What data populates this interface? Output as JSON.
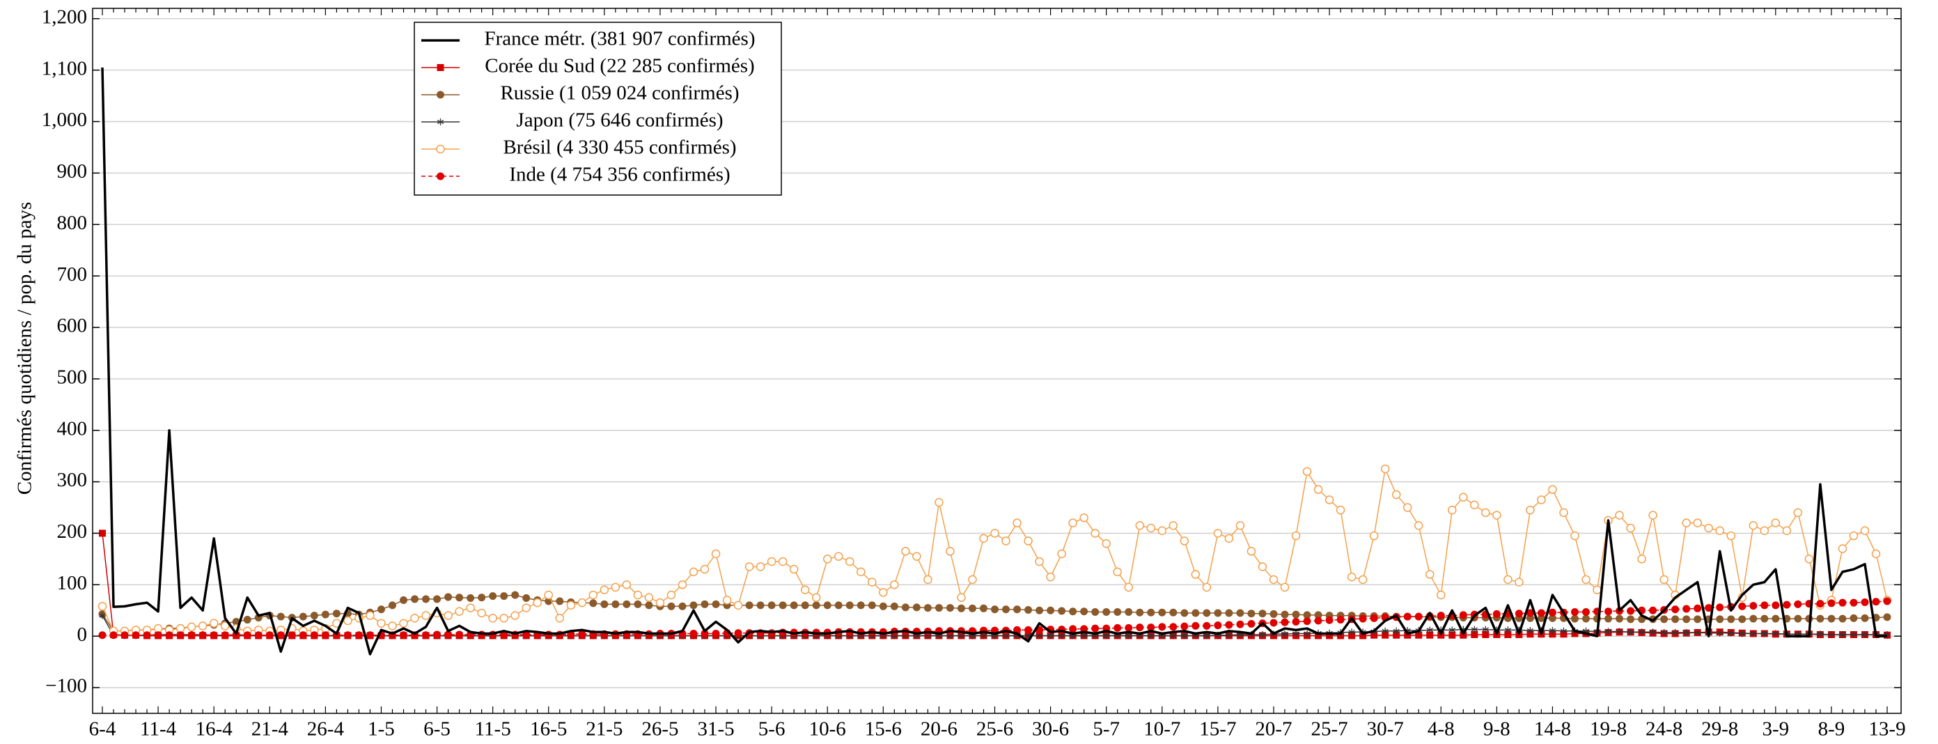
{
  "chart_data": {
    "type": "line",
    "ylabel": "Confirmés quotidiens / pop. du pays",
    "categories": [
      "6-4",
      null,
      null,
      null,
      null,
      "11-4",
      null,
      null,
      null,
      null,
      "16-4",
      null,
      null,
      null,
      null,
      "21-4",
      null,
      null,
      null,
      null,
      "26-4",
      null,
      null,
      null,
      null,
      "1-5",
      null,
      null,
      null,
      null,
      "6-5",
      null,
      null,
      null,
      null,
      "11-5",
      null,
      null,
      null,
      null,
      "16-5",
      null,
      null,
      null,
      null,
      "21-5",
      null,
      null,
      null,
      null,
      "26-5",
      null,
      null,
      null,
      null,
      "31-5",
      null,
      null,
      null,
      null,
      "5-6",
      null,
      null,
      null,
      null,
      "10-6",
      null,
      null,
      null,
      null,
      "15-6",
      null,
      null,
      null,
      null,
      "20-6",
      null,
      null,
      null,
      null,
      "25-6",
      null,
      null,
      null,
      null,
      "30-6",
      null,
      null,
      null,
      null,
      "5-7",
      null,
      null,
      null,
      null,
      "10-7",
      null,
      null,
      null,
      null,
      "15-7",
      null,
      null,
      null,
      null,
      "20-7",
      null,
      null,
      null,
      null,
      "25-7",
      null,
      null,
      null,
      null,
      "30-7",
      null,
      null,
      null,
      null,
      "4-8",
      null,
      null,
      null,
      null,
      "9-8",
      null,
      null,
      null,
      null,
      "14-8",
      null,
      null,
      null,
      null,
      "19-8",
      null,
      null,
      null,
      null,
      "24-8",
      null,
      null,
      null,
      null,
      "29-8",
      null,
      null,
      null,
      null,
      "3-9",
      null,
      null,
      null,
      null,
      "8-9",
      null,
      null,
      null,
      null,
      "13-9"
    ],
    "ylim": [
      -150,
      1220
    ],
    "yticks": [
      {
        "value": -100,
        "label": "−100"
      },
      0,
      100,
      200,
      300,
      400,
      500,
      600,
      700,
      800,
      900,
      {
        "value": 1000,
        "label": "1,000"
      },
      {
        "value": 1100,
        "label": "1,100"
      },
      {
        "value": 1200,
        "label": "1,200"
      }
    ],
    "grid": true,
    "legend": "upper left",
    "series": [
      {
        "name": "France métr. (381 907 confirmés)",
        "color": "#000000",
        "marker": "none",
        "width": 3.5,
        "values": [
          1105,
          57,
          58,
          62,
          65,
          48,
          400,
          55,
          75,
          50,
          190,
          35,
          5,
          75,
          40,
          45,
          -30,
          35,
          20,
          30,
          20,
          5,
          55,
          45,
          -35,
          12,
          5,
          15,
          5,
          18,
          55,
          10,
          20,
          8,
          5,
          5,
          10,
          5,
          10,
          8,
          5,
          5,
          10,
          12,
          8,
          8,
          5,
          8,
          8,
          5,
          5,
          5,
          10,
          50,
          10,
          28,
          12,
          -12,
          8,
          10,
          8,
          10,
          5,
          8,
          5,
          5,
          8,
          10,
          5,
          8,
          5,
          8,
          10,
          5,
          8,
          5,
          10,
          8,
          5,
          8,
          5,
          10,
          5,
          -10,
          25,
          8,
          10,
          5,
          8,
          5,
          10,
          5,
          8,
          5,
          10,
          5,
          8,
          10,
          5,
          8,
          5,
          10,
          8,
          5,
          25,
          5,
          15,
          12,
          15,
          5,
          5,
          5,
          35,
          5,
          10,
          30,
          40,
          5,
          10,
          45,
          5,
          50,
          5,
          40,
          55,
          5,
          60,
          5,
          70,
          5,
          80,
          45,
          10,
          5,
          0,
          225,
          50,
          70,
          40,
          30,
          50,
          75,
          90,
          105,
          0,
          165,
          50,
          80,
          100,
          105,
          130,
          0,
          0,
          0,
          295,
          90,
          125,
          130,
          140,
          0,
          0
        ]
      },
      {
        "name": "Corée du Sud (22 285 confirmés)",
        "color": "#d40000",
        "marker": "square",
        "width": 1.5,
        "values": [
          200,
          3,
          2,
          2,
          1,
          1,
          1,
          1,
          1,
          1,
          1,
          1,
          1,
          1,
          1,
          1,
          1,
          1,
          1,
          1,
          1,
          1,
          1,
          1,
          1,
          1,
          1,
          1,
          1,
          1,
          1,
          1,
          1,
          1,
          1,
          1,
          1,
          1,
          1,
          1,
          1,
          1,
          1,
          1,
          1,
          1,
          1,
          1,
          1,
          1,
          1,
          1,
          1,
          1,
          1,
          1,
          1,
          1,
          1,
          1,
          1,
          1,
          1,
          1,
          1,
          1,
          1,
          1,
          1,
          1,
          1,
          1,
          1,
          1,
          1,
          1,
          1,
          1,
          1,
          1,
          1,
          1,
          1,
          1,
          1,
          1,
          1,
          1,
          1,
          1,
          1,
          1,
          1,
          1,
          1,
          1,
          1,
          1,
          1,
          1,
          1,
          1,
          1,
          1,
          1,
          1,
          1,
          1,
          1,
          1,
          1,
          1,
          1,
          1,
          2,
          2,
          2,
          2,
          2,
          2,
          2,
          2,
          2,
          3,
          3,
          3,
          3,
          3,
          4,
          4,
          4,
          4,
          5,
          5,
          6,
          7,
          8,
          8,
          7,
          6,
          5,
          5,
          6,
          7,
          8,
          8,
          7,
          6,
          5,
          5,
          4,
          4,
          4,
          4,
          3,
          3,
          3,
          3,
          3,
          3,
          2
        ]
      },
      {
        "name": "Russie (1 059 024 confirmés)",
        "color": "#8b5a2b",
        "marker": "circle",
        "width": 1.5,
        "values": [
          43,
          10,
          10,
          12,
          12,
          14,
          15,
          16,
          18,
          20,
          22,
          25,
          28,
          32,
          36,
          40,
          38,
          36,
          38,
          40,
          42,
          44,
          44,
          42,
          46,
          52,
          60,
          70,
          72,
          72,
          72,
          76,
          75,
          74,
          75,
          78,
          78,
          80,
          74,
          70,
          68,
          68,
          66,
          65,
          64,
          62,
          62,
          62,
          62,
          60,
          58,
          58,
          58,
          60,
          62,
          62,
          60,
          60,
          60,
          60,
          60,
          60,
          60,
          60,
          60,
          60,
          60,
          60,
          60,
          60,
          58,
          58,
          56,
          56,
          55,
          55,
          55,
          54,
          54,
          54,
          52,
          52,
          52,
          51,
          50,
          50,
          49,
          48,
          48,
          47,
          47,
          47,
          47,
          46,
          46,
          46,
          46,
          45,
          45,
          45,
          45,
          45,
          45,
          44,
          44,
          43,
          42,
          42,
          41,
          41,
          40,
          40,
          40,
          39,
          39,
          39,
          38,
          38,
          38,
          37,
          37,
          37,
          36,
          36,
          36,
          36,
          35,
          35,
          35,
          35,
          35,
          35,
          34,
          34,
          34,
          34,
          34,
          33,
          33,
          33,
          33,
          33,
          33,
          33,
          33,
          33,
          33,
          33,
          34,
          34,
          34,
          34,
          34,
          34,
          34,
          34,
          34,
          35,
          35,
          36,
          37
        ]
      },
      {
        "name": "Japon (75 646 confirmés)",
        "color": "#333333",
        "marker": "star",
        "width": 1.5,
        "values": [
          40,
          2,
          2,
          2,
          2,
          3,
          3,
          3,
          3,
          3,
          2,
          2,
          3,
          2,
          2,
          2,
          1,
          1,
          1,
          1,
          1,
          1,
          1,
          1,
          1,
          1,
          1,
          1,
          1,
          1,
          1,
          1,
          1,
          1,
          1,
          1,
          1,
          1,
          1,
          1,
          1,
          1,
          1,
          1,
          1,
          1,
          1,
          1,
          1,
          1,
          1,
          1,
          1,
          1,
          1,
          1,
          1,
          1,
          1,
          1,
          1,
          1,
          1,
          1,
          1,
          1,
          1,
          1,
          1,
          1,
          1,
          1,
          1,
          1,
          1,
          1,
          1,
          1,
          1,
          1,
          1,
          1,
          1,
          1,
          1,
          1,
          1,
          1,
          1,
          1,
          1,
          1,
          1,
          1,
          1,
          1,
          1,
          1,
          1,
          1,
          2,
          2,
          3,
          3,
          3,
          4,
          4,
          5,
          5,
          6,
          6,
          7,
          8,
          8,
          9,
          10,
          10,
          11,
          11,
          12,
          12,
          12,
          13,
          13,
          13,
          12,
          12,
          12,
          11,
          11,
          11,
          10,
          10,
          10,
          9,
          9,
          9,
          8,
          8,
          8,
          7,
          7,
          7,
          7,
          6,
          6,
          6,
          5,
          5,
          5,
          5,
          4,
          4,
          4,
          4,
          3,
          3,
          3,
          3,
          3,
          3
        ]
      },
      {
        "name": "Brésil (4 330 455 confirmés)",
        "color": "#f5a04a",
        "marker": "open-circle",
        "width": 1.5,
        "values": [
          58,
          10,
          10,
          12,
          12,
          15,
          12,
          15,
          18,
          20,
          25,
          20,
          15,
          10,
          12,
          10,
          12,
          15,
          10,
          12,
          15,
          25,
          30,
          35,
          40,
          25,
          20,
          25,
          35,
          40,
          45,
          40,
          48,
          55,
          45,
          35,
          35,
          40,
          55,
          65,
          80,
          35,
          60,
          65,
          80,
          90,
          95,
          100,
          80,
          75,
          65,
          80,
          100,
          125,
          130,
          160,
          70,
          60,
          135,
          135,
          145,
          145,
          130,
          90,
          75,
          150,
          155,
          145,
          125,
          105,
          85,
          100,
          165,
          155,
          110,
          260,
          165,
          75,
          110,
          190,
          200,
          185,
          220,
          185,
          145,
          115,
          160,
          220,
          230,
          200,
          180,
          125,
          95,
          215,
          210,
          205,
          215,
          185,
          120,
          95,
          200,
          190,
          215,
          165,
          135,
          110,
          95,
          195,
          320,
          285,
          265,
          245,
          115,
          110,
          195,
          325,
          275,
          250,
          215,
          120,
          80,
          245,
          270,
          255,
          240,
          235,
          110,
          105,
          245,
          265,
          285,
          240,
          195,
          110,
          90,
          225,
          235,
          210,
          150,
          235,
          110,
          80,
          220,
          220,
          210,
          205,
          195,
          75,
          215,
          205,
          220,
          205,
          240,
          150,
          60,
          70,
          170,
          195,
          205,
          160,
          70
        ]
      },
      {
        "name": "Inde (4 754 356 confirmés)",
        "color": "#e00000",
        "marker": "circle",
        "dash": true,
        "width": 1.5,
        "values": [
          2,
          2,
          2,
          2,
          2,
          2,
          2,
          2,
          2,
          2,
          2,
          2,
          2,
          2,
          2,
          2,
          2,
          2,
          2,
          2,
          2,
          2,
          2,
          2,
          2,
          2,
          2,
          2,
          2,
          2,
          3,
          3,
          3,
          3,
          3,
          3,
          3,
          3,
          3,
          3,
          3,
          3,
          4,
          4,
          4,
          4,
          4,
          4,
          4,
          4,
          5,
          5,
          5,
          5,
          5,
          5,
          6,
          6,
          6,
          6,
          6,
          7,
          7,
          7,
          7,
          7,
          8,
          8,
          8,
          8,
          8,
          9,
          9,
          9,
          9,
          10,
          10,
          10,
          10,
          11,
          11,
          11,
          12,
          12,
          12,
          13,
          13,
          14,
          14,
          15,
          15,
          16,
          16,
          17,
          17,
          18,
          18,
          19,
          20,
          20,
          21,
          22,
          23,
          24,
          25,
          26,
          27,
          28,
          29,
          30,
          31,
          32,
          33,
          34,
          35,
          36,
          37,
          38,
          38,
          39,
          40,
          40,
          41,
          42,
          42,
          43,
          44,
          44,
          45,
          45,
          46,
          46,
          47,
          47,
          48,
          48,
          49,
          49,
          50,
          50,
          51,
          52,
          53,
          54,
          55,
          56,
          57,
          58,
          59,
          60,
          60,
          61,
          62,
          63,
          63,
          64,
          65,
          65,
          66,
          67,
          68
        ]
      }
    ]
  }
}
